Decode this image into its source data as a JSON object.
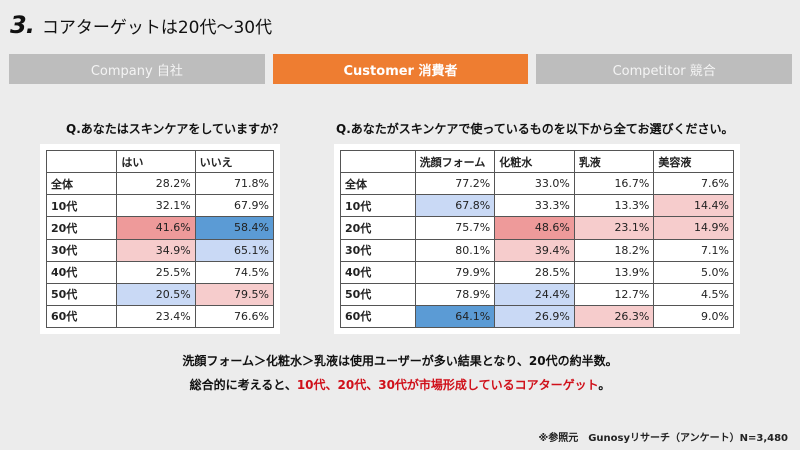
{
  "title": {
    "number": "3.",
    "text": "コアターゲットは20代〜30代"
  },
  "tabs": [
    {
      "label": "Company 自社",
      "active": false
    },
    {
      "label": "Customer 消費者",
      "active": true
    },
    {
      "label": "Competitor 競合",
      "active": false
    }
  ],
  "colors": {
    "accent": "#ee7d31",
    "tab_inactive": "#bdbdbd",
    "highlight_red": "#d0101a",
    "cell_dark_red": "#ee9a9a",
    "cell_light_red": "#f6cccc",
    "cell_dark_blue": "#5b9bd5",
    "cell_light_blue": "#c9d9f5"
  },
  "q1": {
    "question": "Q.あなたはスキンケアをしていますか？",
    "headers": [
      "",
      "はい",
      "いいえ"
    ],
    "rows": [
      {
        "label": "全体",
        "cells": [
          {
            "v": "28.2%",
            "c": ""
          },
          {
            "v": "71.8%",
            "c": ""
          }
        ]
      },
      {
        "label": "10代",
        "cells": [
          {
            "v": "32.1%",
            "c": ""
          },
          {
            "v": "67.9%",
            "c": ""
          }
        ]
      },
      {
        "label": "20代",
        "cells": [
          {
            "v": "41.6%",
            "c": "dark-red"
          },
          {
            "v": "58.4%",
            "c": "dark-blue"
          }
        ]
      },
      {
        "label": "30代",
        "cells": [
          {
            "v": "34.9%",
            "c": "light-red"
          },
          {
            "v": "65.1%",
            "c": "light-blue"
          }
        ]
      },
      {
        "label": "40代",
        "cells": [
          {
            "v": "25.5%",
            "c": ""
          },
          {
            "v": "74.5%",
            "c": ""
          }
        ]
      },
      {
        "label": "50代",
        "cells": [
          {
            "v": "20.5%",
            "c": "light-blue"
          },
          {
            "v": "79.5%",
            "c": "light-red"
          }
        ]
      },
      {
        "label": "60代",
        "cells": [
          {
            "v": "23.4%",
            "c": ""
          },
          {
            "v": "76.6%",
            "c": ""
          }
        ]
      }
    ]
  },
  "q2": {
    "question": "Q.あなたがスキンケアで使っているものを以下から全てお選びください。",
    "headers": [
      "",
      "洗顔フォーム",
      "化粧水",
      "乳液",
      "美容液"
    ],
    "rows": [
      {
        "label": "全体",
        "cells": [
          {
            "v": "77.2%",
            "c": ""
          },
          {
            "v": "33.0%",
            "c": ""
          },
          {
            "v": "16.7%",
            "c": ""
          },
          {
            "v": "7.6%",
            "c": ""
          }
        ]
      },
      {
        "label": "10代",
        "cells": [
          {
            "v": "67.8%",
            "c": "light-blue"
          },
          {
            "v": "33.3%",
            "c": ""
          },
          {
            "v": "13.3%",
            "c": ""
          },
          {
            "v": "14.4%",
            "c": "light-red"
          }
        ]
      },
      {
        "label": "20代",
        "cells": [
          {
            "v": "75.7%",
            "c": ""
          },
          {
            "v": "48.6%",
            "c": "dark-red"
          },
          {
            "v": "23.1%",
            "c": "light-red"
          },
          {
            "v": "14.9%",
            "c": "light-red"
          }
        ]
      },
      {
        "label": "30代",
        "cells": [
          {
            "v": "80.1%",
            "c": ""
          },
          {
            "v": "39.4%",
            "c": "light-red"
          },
          {
            "v": "18.2%",
            "c": ""
          },
          {
            "v": "7.1%",
            "c": ""
          }
        ]
      },
      {
        "label": "40代",
        "cells": [
          {
            "v": "79.9%",
            "c": ""
          },
          {
            "v": "28.5%",
            "c": ""
          },
          {
            "v": "13.9%",
            "c": ""
          },
          {
            "v": "5.0%",
            "c": ""
          }
        ]
      },
      {
        "label": "50代",
        "cells": [
          {
            "v": "78.9%",
            "c": ""
          },
          {
            "v": "24.4%",
            "c": "light-blue"
          },
          {
            "v": "12.7%",
            "c": ""
          },
          {
            "v": "4.5%",
            "c": ""
          }
        ]
      },
      {
        "label": "60代",
        "cells": [
          {
            "v": "64.1%",
            "c": "dark-blue"
          },
          {
            "v": "26.9%",
            "c": "light-blue"
          },
          {
            "v": "26.3%",
            "c": "light-red"
          },
          {
            "v": "9.0%",
            "c": ""
          }
        ]
      }
    ]
  },
  "summary": {
    "line1": "洗顔フォーム＞化粧水＞乳液は使用ユーザーが多い結果となり、20代の約半数。",
    "line2_prefix": "総合的に考えると、",
    "line2_highlight": "10代、20代、30代が市場形成しているコアターゲット",
    "line2_suffix": "。"
  },
  "source": "※参照元　Gunosyリサーチ（アンケート）N=3,480"
}
